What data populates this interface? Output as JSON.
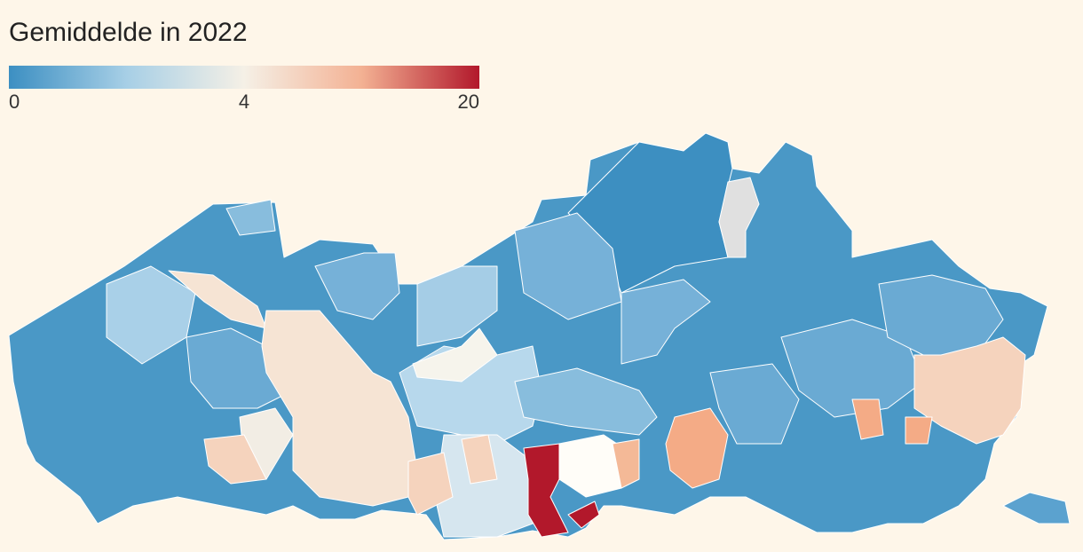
{
  "title": "Gemiddelde in 2022",
  "legend": {
    "ticks": [
      0,
      4,
      20
    ],
    "colors": [
      "#3c8fc2",
      "#a7cfe6",
      "#f5f0e6",
      "#f3b193",
      "#b2182b"
    ]
  }
}
